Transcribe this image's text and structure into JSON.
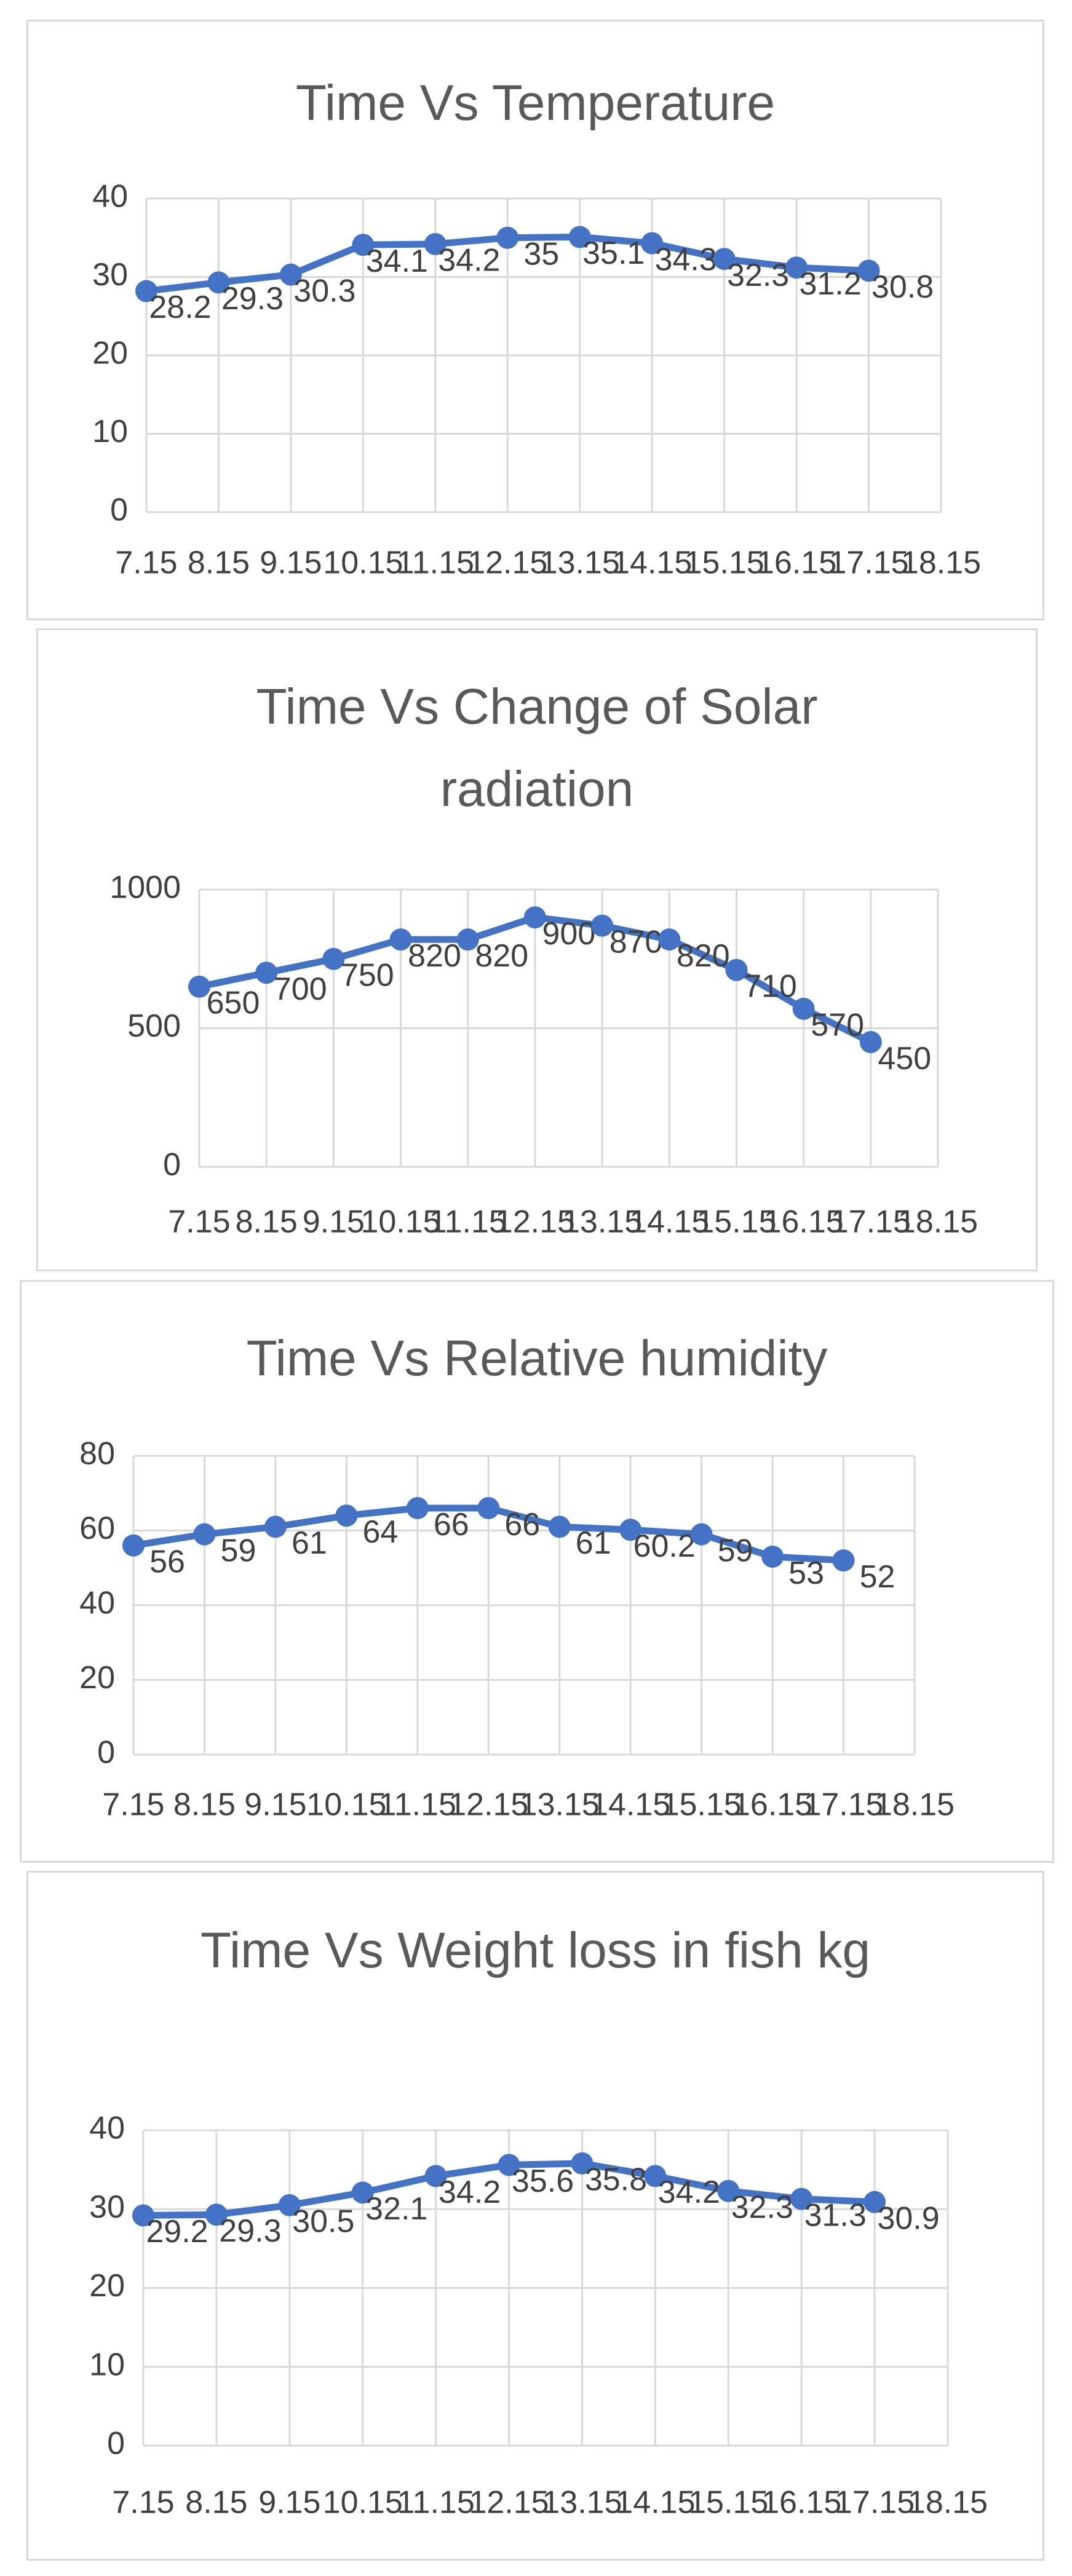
{
  "chart_data": [
    {
      "type": "line",
      "title": "Time Vs Temperature",
      "categories": [
        "7.15",
        "8.15",
        "9.15",
        "10.15",
        "11.15",
        "12.15",
        "13.15",
        "14.15",
        "15.15",
        "16.15",
        "17.15",
        "18.15"
      ],
      "series": [
        {
          "color": "#4472c4",
          "values": [
            28.2,
            29.3,
            30.3,
            34.1,
            34.2,
            35,
            35.1,
            34.3,
            32.3,
            31.2,
            30.8,
            null
          ]
        }
      ],
      "ylim": [
        0,
        40
      ],
      "yticks": [
        0,
        10,
        20,
        30,
        40
      ],
      "grid": true
    },
    {
      "type": "line",
      "title": "Time Vs Change of Solar radiation",
      "categories": [
        "7.15",
        "8.15",
        "9.15",
        "10.15",
        "11.15",
        "12.15",
        "13.15",
        "14.15",
        "15.15",
        "16.15",
        "17.15",
        "18.15"
      ],
      "series": [
        {
          "color": "#4472c4",
          "values": [
            650,
            700,
            750,
            820,
            820,
            900,
            870,
            820,
            710,
            570,
            450,
            null
          ]
        }
      ],
      "ylim": [
        0,
        1000
      ],
      "yticks": [
        0,
        500,
        1000
      ],
      "grid": true
    },
    {
      "type": "line",
      "title": "Time Vs Relative humidity",
      "categories": [
        "7.15",
        "8.15",
        "9.15",
        "10.15",
        "11.15",
        "12.15",
        "13.15",
        "14.15",
        "15.15",
        "16.15",
        "17.15",
        "18.15"
      ],
      "series": [
        {
          "color": "#4472c4",
          "values": [
            56,
            59,
            61,
            64,
            66,
            66,
            61,
            60.2,
            59,
            53,
            52,
            null
          ]
        }
      ],
      "ylim": [
        0,
        80
      ],
      "yticks": [
        0,
        20,
        40,
        60,
        80
      ],
      "grid": true
    },
    {
      "type": "line",
      "title": "Time Vs Weight loss in fish kg",
      "categories": [
        "7.15",
        "8.15",
        "9.15",
        "10.15",
        "11.15",
        "12.15",
        "13.15",
        "14.15",
        "15.15",
        "16.15",
        "17.15",
        "18.15"
      ],
      "series": [
        {
          "color": "#4472c4",
          "values": [
            29.2,
            29.3,
            30.5,
            32.1,
            34.2,
            35.6,
            35.8,
            34.2,
            32.3,
            31.3,
            30.9,
            null
          ]
        }
      ],
      "ylim": [
        0,
        40
      ],
      "yticks": [
        0,
        10,
        20,
        30,
        40
      ],
      "grid": true
    }
  ]
}
